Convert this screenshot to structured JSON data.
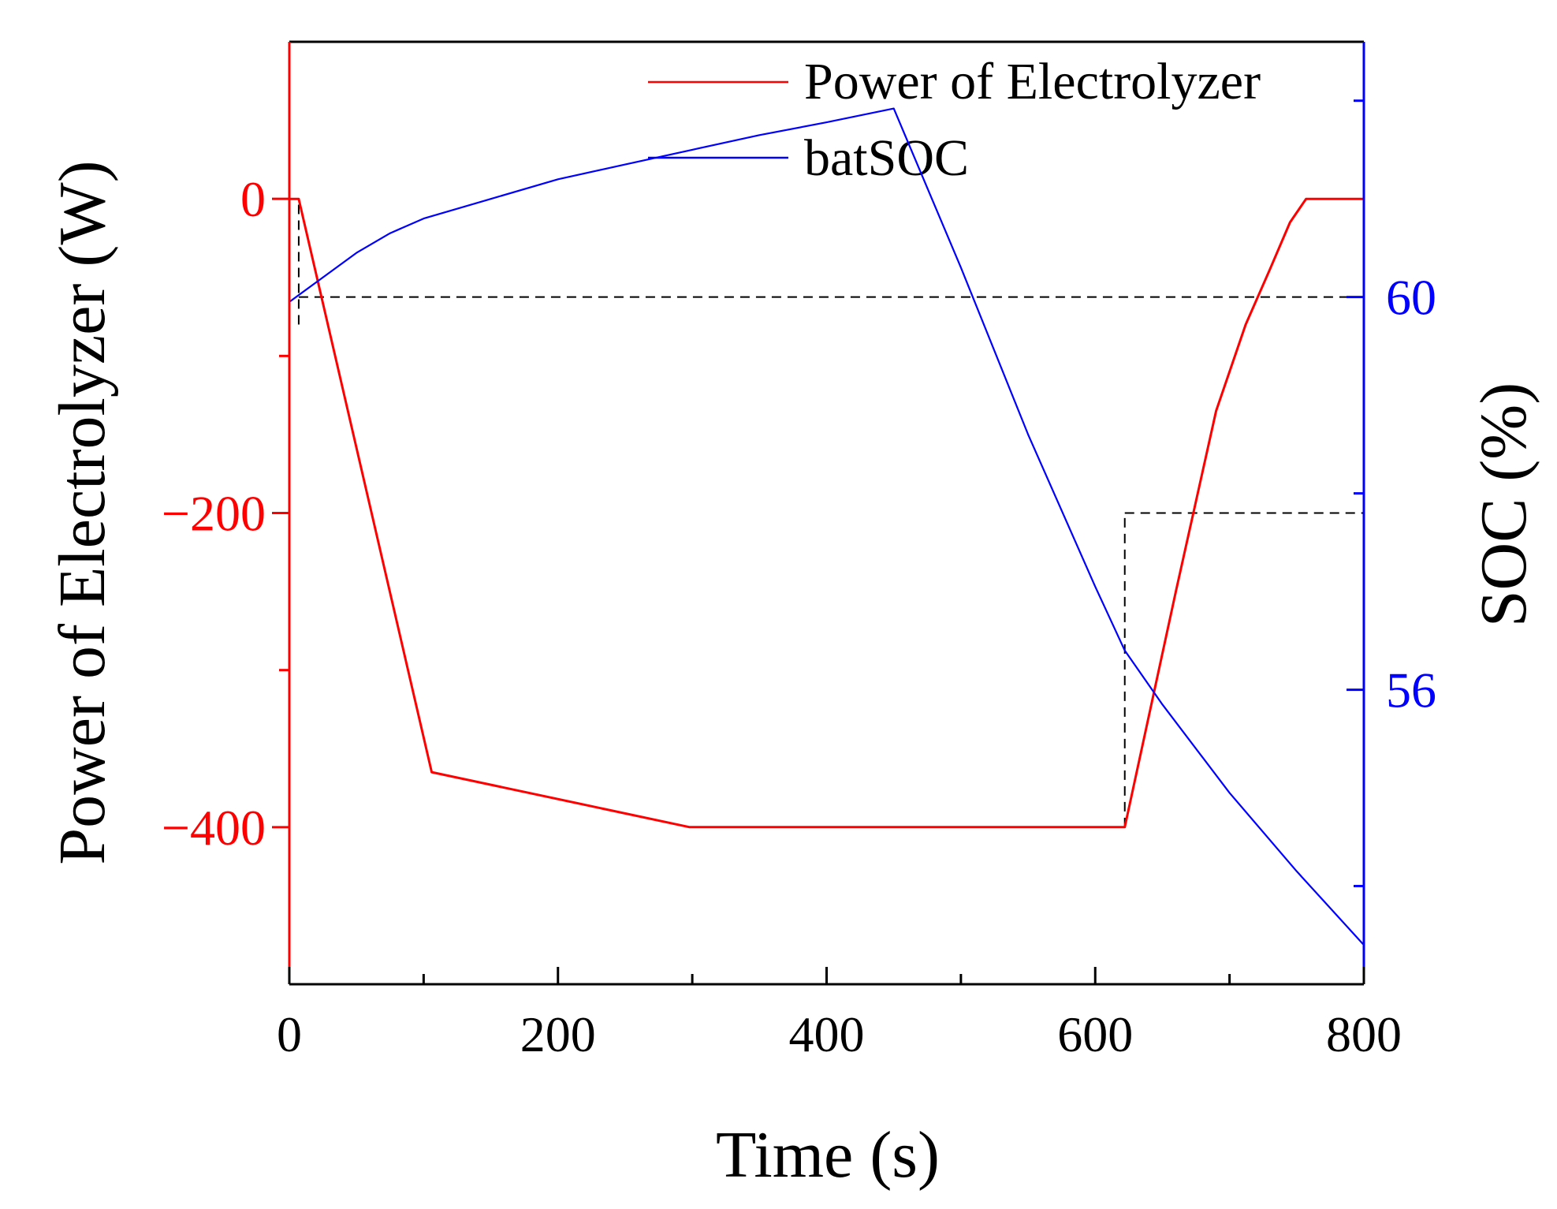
{
  "chart_data": {
    "type": "line",
    "title": "",
    "xlabel": "Time (s)",
    "ylabel_left": "Power of Electrolyzer (W)",
    "ylabel_right": "SOC (%)",
    "xlim": [
      0,
      800
    ],
    "ylim_left": [
      -500,
      100
    ],
    "ylim_right": [
      53.0,
      62.6
    ],
    "x_ticks": [
      0,
      200,
      400,
      600,
      800
    ],
    "x_tick_labels": [
      "0",
      "200",
      "400",
      "600",
      "800"
    ],
    "y_left_ticks": [
      0,
      -200,
      -400
    ],
    "y_left_tick_labels": [
      "0",
      "−200",
      "−400"
    ],
    "y_right_ticks": [
      60,
      56
    ],
    "y_right_tick_labels": [
      "60",
      "56"
    ],
    "legend_position": "top-right",
    "grid": false,
    "colors": {
      "power": "#ff0000",
      "soc": "#0000ff",
      "axis": "#000000",
      "ref": "#000000"
    },
    "series": [
      {
        "name": "Power of Electrolyzer",
        "axis": "left",
        "color": "#ff0000",
        "x": [
          0,
          7,
          106,
          298,
          622,
          660,
          690,
          712,
          730,
          745,
          757,
          800
        ],
        "y": [
          0,
          0,
          -365,
          -400,
          -400,
          -250,
          -135,
          -80,
          -45,
          -15,
          0,
          0
        ]
      },
      {
        "name": "batSOC",
        "axis": "right",
        "color": "#0000ff",
        "x": [
          0,
          25,
          50,
          75,
          100,
          150,
          200,
          250,
          300,
          350,
          400,
          450,
          500,
          550,
          600,
          622,
          650,
          700,
          750,
          800
        ],
        "y": [
          59.95,
          60.2,
          60.45,
          60.65,
          60.8,
          61.0,
          61.2,
          61.35,
          61.5,
          61.65,
          61.78,
          61.92,
          60.3,
          58.6,
          57.05,
          56.4,
          55.85,
          54.95,
          54.15,
          53.4
        ]
      }
    ],
    "reference_lines": [
      {
        "axis": "right",
        "y": 60,
        "x_from": 7,
        "x_to": 800
      },
      {
        "axis": "left",
        "y": -200,
        "x_from": 622,
        "x_to": 800
      },
      {
        "axis": "x",
        "x": 7,
        "y_from": -80,
        "y_to": 0
      },
      {
        "axis": "x",
        "x": 622,
        "y_from": -400,
        "y_to": -200
      }
    ]
  }
}
